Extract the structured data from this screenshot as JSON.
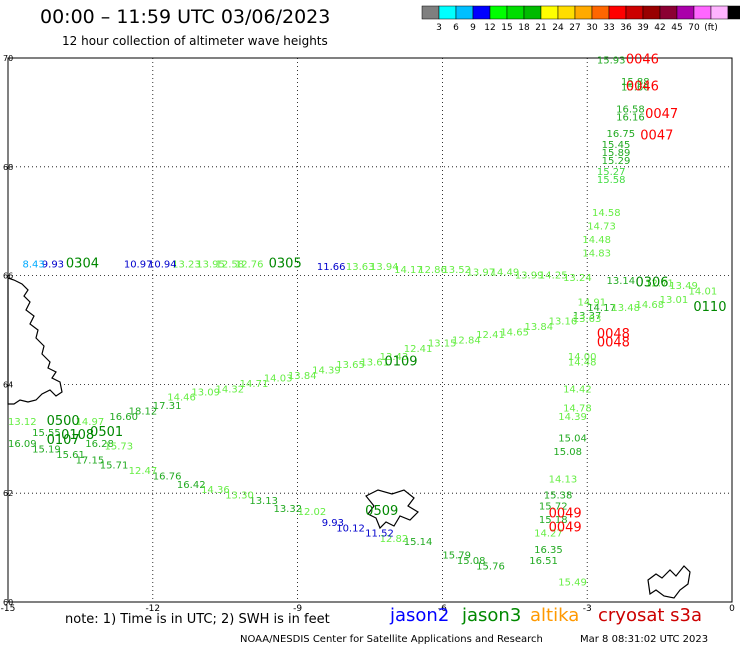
{
  "header": {
    "title": "00:00 – 11:59 UTC 03/06/2023",
    "subtitle": "12 hour collection of altimeter wave heights"
  },
  "colorbar": {
    "colors": [
      "#7f7f7f",
      "#00ffff",
      "#00bfff",
      "#0000ff",
      "#00ff00",
      "#00dd00",
      "#00bb00",
      "#ffff00",
      "#ffdd00",
      "#ffaa00",
      "#ff6600",
      "#ff0000",
      "#cc0000",
      "#990000",
      "#8b0033",
      "#aa00aa",
      "#ff66ff",
      "#ffb3ff",
      "#000000"
    ],
    "labels": [
      "3",
      "6",
      "9",
      "12",
      "15",
      "18",
      "21",
      "24",
      "27",
      "30",
      "33",
      "36",
      "39",
      "42",
      "45",
      "70",
      "(ft)"
    ]
  },
  "axes": {
    "lon_ticks": [
      {
        "value": -15,
        "label": "-15"
      },
      {
        "value": -12,
        "label": "-12"
      },
      {
        "value": -9,
        "label": "-9"
      },
      {
        "value": -6,
        "label": "-6"
      },
      {
        "value": -3,
        "label": "-3"
      },
      {
        "value": 0,
        "label": "0"
      }
    ],
    "lat_ticks": [
      {
        "value": 60,
        "label": "60"
      },
      {
        "value": 62,
        "label": "62"
      },
      {
        "value": 64,
        "label": "64"
      },
      {
        "value": 66,
        "label": "66"
      },
      {
        "value": 68,
        "label": "68"
      },
      {
        "value": 70,
        "label": "70"
      }
    ],
    "lon_range": [
      -15,
      0
    ],
    "lat_range": [
      60,
      70
    ]
  },
  "legend": {
    "note": "note:  1) Time is in UTC;  2) SWH is in feet",
    "satellites": [
      {
        "name": "jason2",
        "color": "#0000ff"
      },
      {
        "name": "jason3",
        "color": "#008800"
      },
      {
        "name": "altika",
        "color": "#ff9900"
      },
      {
        "name": "cryosat s3a",
        "color": "#cc0000"
      }
    ]
  },
  "footer": {
    "credit": "NOAA/NESDIS Center for Satellite Applications and Research",
    "timestamp": "Mar  8 08:31:02 UTC 2023"
  },
  "time_labels": [
    {
      "text": "0046",
      "lon": -2.2,
      "lat": 69.9,
      "color": "#ff0000"
    },
    {
      "text": "0046",
      "lon": -2.2,
      "lat": 69.4,
      "color": "#ff0000"
    },
    {
      "text": "0047",
      "lon": -1.8,
      "lat": 68.9,
      "color": "#ff0000"
    },
    {
      "text": "0047",
      "lon": -1.9,
      "lat": 68.5,
      "color": "#ff0000"
    },
    {
      "text": "0048",
      "lon": -2.8,
      "lat": 64.85,
      "color": "#ff0000"
    },
    {
      "text": "0048",
      "lon": -2.8,
      "lat": 64.7,
      "color": "#ff0000"
    },
    {
      "text": "0049",
      "lon": -3.8,
      "lat": 61.55,
      "color": "#ff0000"
    },
    {
      "text": "0049",
      "lon": -3.8,
      "lat": 61.3,
      "color": "#ff0000"
    },
    {
      "text": "0306",
      "lon": -2.0,
      "lat": 65.8,
      "color": "#008800"
    },
    {
      "text": "0110",
      "lon": -0.8,
      "lat": 65.35,
      "color": "#008800"
    },
    {
      "text": "0305",
      "lon": -9.6,
      "lat": 66.15,
      "color": "#008800"
    },
    {
      "text": "0109",
      "lon": -7.2,
      "lat": 64.35,
      "color": "#008800"
    },
    {
      "text": "0500",
      "lon": -14.2,
      "lat": 63.25,
      "color": "#008800"
    },
    {
      "text": "0501",
      "lon": -13.3,
      "lat": 63.05,
      "color": "#008800"
    },
    {
      "text": "0107",
      "lon": -14.2,
      "lat": 62.9,
      "color": "#008800"
    },
    {
      "text": "0108",
      "lon": -13.9,
      "lat": 63.0,
      "color": "#008800"
    },
    {
      "text": "0509",
      "lon": -7.6,
      "lat": 61.6,
      "color": "#008800"
    },
    {
      "text": "0304",
      "lon": -13.8,
      "lat": 66.15,
      "color": "#008800"
    }
  ],
  "swh_labels": [
    {
      "text": "15.93",
      "lon": -2.8,
      "lat": 69.9,
      "color": "#22aa22"
    },
    {
      "text": "15.88",
      "lon": -2.3,
      "lat": 69.5,
      "color": "#22aa22"
    },
    {
      "text": "15.66",
      "lon": -2.3,
      "lat": 69.4,
      "color": "#22aa22"
    },
    {
      "text": "16.58",
      "lon": -2.4,
      "lat": 69.0,
      "color": "#22aa22"
    },
    {
      "text": "16.16",
      "lon": -2.4,
      "lat": 68.85,
      "color": "#22aa22"
    },
    {
      "text": "16.75",
      "lon": -2.6,
      "lat": 68.55,
      "color": "#22aa22"
    },
    {
      "text": "15.45",
      "lon": -2.7,
      "lat": 68.35,
      "color": "#22aa22"
    },
    {
      "text": "15.89",
      "lon": -2.7,
      "lat": 68.2,
      "color": "#22aa22"
    },
    {
      "text": "15.29",
      "lon": -2.7,
      "lat": 68.05,
      "color": "#22aa22"
    },
    {
      "text": "15.27",
      "lon": -2.8,
      "lat": 67.85,
      "color": "#44dd44"
    },
    {
      "text": "15.58",
      "lon": -2.8,
      "lat": 67.7,
      "color": "#44dd44"
    },
    {
      "text": "14.58",
      "lon": -2.9,
      "lat": 67.1,
      "color": "#66ee44"
    },
    {
      "text": "14.73",
      "lon": -3.0,
      "lat": 66.85,
      "color": "#66ee44"
    },
    {
      "text": "14.48",
      "lon": -3.1,
      "lat": 66.6,
      "color": "#66ee44"
    },
    {
      "text": "14.83",
      "lon": -3.1,
      "lat": 66.35,
      "color": "#66ee44"
    },
    {
      "text": "14.91",
      "lon": -3.2,
      "lat": 65.45,
      "color": "#66ee44"
    },
    {
      "text": "13.37",
      "lon": -3.3,
      "lat": 65.2,
      "color": "#22aa22"
    },
    {
      "text": "14.00",
      "lon": -3.4,
      "lat": 64.45,
      "color": "#66ee44"
    },
    {
      "text": "14.48",
      "lon": -3.4,
      "lat": 64.35,
      "color": "#66ee44"
    },
    {
      "text": "14.42",
      "lon": -3.5,
      "lat": 63.85,
      "color": "#66ee44"
    },
    {
      "text": "14.78",
      "lon": -3.5,
      "lat": 63.5,
      "color": "#66ee44"
    },
    {
      "text": "14.39",
      "lon": -3.6,
      "lat": 63.35,
      "color": "#66ee44"
    },
    {
      "text": "15.04",
      "lon": -3.6,
      "lat": 62.95,
      "color": "#22aa22"
    },
    {
      "text": "15.08",
      "lon": -3.7,
      "lat": 62.7,
      "color": "#22aa22"
    },
    {
      "text": "14.13",
      "lon": -3.8,
      "lat": 62.2,
      "color": "#66ee44"
    },
    {
      "text": "15.38",
      "lon": -3.9,
      "lat": 61.9,
      "color": "#22aa22"
    },
    {
      "text": "15.72",
      "lon": -4.0,
      "lat": 61.7,
      "color": "#22aa22"
    },
    {
      "text": "15.18",
      "lon": -4.0,
      "lat": 61.45,
      "color": "#22aa22"
    },
    {
      "text": "14.27",
      "lon": -4.1,
      "lat": 61.2,
      "color": "#66ee44"
    },
    {
      "text": "16.35",
      "lon": -4.1,
      "lat": 60.9,
      "color": "#22aa22"
    },
    {
      "text": "16.51",
      "lon": -4.2,
      "lat": 60.7,
      "color": "#22aa22"
    },
    {
      "text": "15.49",
      "lon": -3.6,
      "lat": 60.3,
      "color": "#66ee44"
    },
    {
      "text": "15.76",
      "lon": -5.3,
      "lat": 60.6,
      "color": "#22aa22"
    },
    {
      "text": "15.08",
      "lon": -5.7,
      "lat": 60.7,
      "color": "#22aa22"
    },
    {
      "text": "15.79",
      "lon": -6.0,
      "lat": 60.8,
      "color": "#22aa22"
    },
    {
      "text": "15.14",
      "lon": -6.8,
      "lat": 61.05,
      "color": "#22aa22"
    },
    {
      "text": "12.82",
      "lon": -7.3,
      "lat": 61.1,
      "color": "#66ee44"
    },
    {
      "text": "11.52",
      "lon": -7.6,
      "lat": 61.2,
      "color": "#0000cc"
    },
    {
      "text": "10.12",
      "lon": -8.2,
      "lat": 61.3,
      "color": "#0000cc"
    },
    {
      "text": "9.93",
      "lon": -8.5,
      "lat": 61.4,
      "color": "#0000cc"
    },
    {
      "text": "12.02",
      "lon": -9.0,
      "lat": 61.6,
      "color": "#66ee44"
    },
    {
      "text": "13.32",
      "lon": -9.5,
      "lat": 61.65,
      "color": "#22aa22"
    },
    {
      "text": "13.13",
      "lon": -10.0,
      "lat": 61.8,
      "color": "#22aa22"
    },
    {
      "text": "13.30",
      "lon": -10.5,
      "lat": 61.9,
      "color": "#66ee44"
    },
    {
      "text": "14.36",
      "lon": -11.0,
      "lat": 62.0,
      "color": "#66ee44"
    },
    {
      "text": "16.42",
      "lon": -11.5,
      "lat": 62.1,
      "color": "#22aa22"
    },
    {
      "text": "16.76",
      "lon": -12.0,
      "lat": 62.25,
      "color": "#22aa22"
    },
    {
      "text": "12.47",
      "lon": -12.5,
      "lat": 62.35,
      "color": "#66ee44"
    },
    {
      "text": "15.71",
      "lon": -13.1,
      "lat": 62.45,
      "color": "#22aa22"
    },
    {
      "text": "17.15",
      "lon": -13.6,
      "lat": 62.55,
      "color": "#22aa22"
    },
    {
      "text": "15.61",
      "lon": -14.0,
      "lat": 62.65,
      "color": "#22aa22"
    },
    {
      "text": "15.19",
      "lon": -14.5,
      "lat": 62.75,
      "color": "#22aa22"
    },
    {
      "text": "16.09",
      "lon": -15.0,
      "lat": 62.85,
      "color": "#22aa22"
    },
    {
      "text": "16.28",
      "lon": -13.4,
      "lat": 62.85,
      "color": "#22aa22"
    },
    {
      "text": "15.73",
      "lon": -13.0,
      "lat": 62.8,
      "color": "#66ee44"
    },
    {
      "text": "13.12",
      "lon": -15.0,
      "lat": 63.25,
      "color": "#66ee44"
    },
    {
      "text": "15.55",
      "lon": -14.5,
      "lat": 63.05,
      "color": "#22aa22"
    },
    {
      "text": "14.97",
      "lon": -13.6,
      "lat": 63.25,
      "color": "#66ee44"
    },
    {
      "text": "16.60",
      "lon": -12.9,
      "lat": 63.35,
      "color": "#22aa22"
    },
    {
      "text": "18.12",
      "lon": -12.5,
      "lat": 63.45,
      "color": "#22aa22"
    },
    {
      "text": "17.31",
      "lon": -12.0,
      "lat": 63.55,
      "color": "#22aa22"
    },
    {
      "text": "14.46",
      "lon": -11.7,
      "lat": 63.7,
      "color": "#66ee44"
    },
    {
      "text": "13.09",
      "lon": -11.2,
      "lat": 63.8,
      "color": "#66ee44"
    },
    {
      "text": "14.32",
      "lon": -10.7,
      "lat": 63.85,
      "color": "#66ee44"
    },
    {
      "text": "14.71",
      "lon": -10.2,
      "lat": 63.95,
      "color": "#66ee44"
    },
    {
      "text": "14.03",
      "lon": -9.7,
      "lat": 64.05,
      "color": "#66ee44"
    },
    {
      "text": "13.84",
      "lon": -9.2,
      "lat": 64.1,
      "color": "#66ee44"
    },
    {
      "text": "14.39",
      "lon": -8.7,
      "lat": 64.2,
      "color": "#66ee44"
    },
    {
      "text": "13.65",
      "lon": -8.2,
      "lat": 64.3,
      "color": "#66ee44"
    },
    {
      "text": "13.61",
      "lon": -7.7,
      "lat": 64.35,
      "color": "#66ee44"
    },
    {
      "text": "13.43",
      "lon": -7.3,
      "lat": 64.45,
      "color": "#66ee44"
    },
    {
      "text": "12.41",
      "lon": -6.8,
      "lat": 64.6,
      "color": "#66ee44"
    },
    {
      "text": "13.15",
      "lon": -6.3,
      "lat": 64.7,
      "color": "#66ee44"
    },
    {
      "text": "12.84",
      "lon": -5.8,
      "lat": 64.75,
      "color": "#66ee44"
    },
    {
      "text": "12.41",
      "lon": -5.3,
      "lat": 64.85,
      "color": "#66ee44"
    },
    {
      "text": "14.65",
      "lon": -4.8,
      "lat": 64.9,
      "color": "#66ee44"
    },
    {
      "text": "13.84",
      "lon": -4.3,
      "lat": 65.0,
      "color": "#66ee44"
    },
    {
      "text": "13.16",
      "lon": -3.8,
      "lat": 65.1,
      "color": "#66ee44"
    },
    {
      "text": "13.63",
      "lon": -3.3,
      "lat": 65.15,
      "color": "#66ee44"
    },
    {
      "text": "14.17",
      "lon": -3.0,
      "lat": 65.35,
      "color": "#22aa22"
    },
    {
      "text": "13.48",
      "lon": -2.5,
      "lat": 65.35,
      "color": "#66ee44"
    },
    {
      "text": "14.68",
      "lon": -2.0,
      "lat": 65.4,
      "color": "#66ee44"
    },
    {
      "text": "13.01",
      "lon": -1.5,
      "lat": 65.5,
      "color": "#66ee44"
    },
    {
      "text": "14.01",
      "lon": -0.9,
      "lat": 65.65,
      "color": "#66ee44"
    },
    {
      "text": "13.49",
      "lon": -1.3,
      "lat": 65.75,
      "color": "#66ee44"
    },
    {
      "text": "12.71",
      "lon": -1.8,
      "lat": 65.8,
      "color": "#66ee44"
    },
    {
      "text": "13.14",
      "lon": -2.6,
      "lat": 65.85,
      "color": "#22aa22"
    },
    {
      "text": "13.24",
      "lon": -3.5,
      "lat": 65.9,
      "color": "#66ee44"
    },
    {
      "text": "14.25",
      "lon": -4.0,
      "lat": 65.95,
      "color": "#66ee44"
    },
    {
      "text": "13.99",
      "lon": -4.5,
      "lat": 65.95,
      "color": "#66ee44"
    },
    {
      "text": "14.49",
      "lon": -5.0,
      "lat": 66.0,
      "color": "#66ee44"
    },
    {
      "text": "13.97",
      "lon": -5.5,
      "lat": 66.0,
      "color": "#66ee44"
    },
    {
      "text": "13.52",
      "lon": -6.0,
      "lat": 66.05,
      "color": "#66ee44"
    },
    {
      "text": "12.86",
      "lon": -6.5,
      "lat": 66.05,
      "color": "#66ee44"
    },
    {
      "text": "14.17",
      "lon": -7.0,
      "lat": 66.05,
      "color": "#66ee44"
    },
    {
      "text": "13.94",
      "lon": -7.5,
      "lat": 66.1,
      "color": "#66ee44"
    },
    {
      "text": "13.63",
      "lon": -8.0,
      "lat": 66.1,
      "color": "#66ee44"
    },
    {
      "text": "11.66",
      "lon": -8.6,
      "lat": 66.1,
      "color": "#0000cc"
    },
    {
      "text": "12.76",
      "lon": -10.3,
      "lat": 66.15,
      "color": "#66ee44"
    },
    {
      "text": "12.58",
      "lon": -10.7,
      "lat": 66.15,
      "color": "#66ee44"
    },
    {
      "text": "13.95",
      "lon": -11.1,
      "lat": 66.15,
      "color": "#66ee44"
    },
    {
      "text": "13.23",
      "lon": -11.6,
      "lat": 66.15,
      "color": "#66ee44"
    },
    {
      "text": "10.94",
      "lon": -12.1,
      "lat": 66.15,
      "color": "#0000cc"
    },
    {
      "text": "10.97",
      "lon": -12.6,
      "lat": 66.15,
      "color": "#0000cc"
    },
    {
      "text": "9.93",
      "lon": -14.3,
      "lat": 66.15,
      "color": "#0000cc"
    },
    {
      "text": "8.43",
      "lon": -14.7,
      "lat": 66.15,
      "color": "#00aaff"
    }
  ]
}
